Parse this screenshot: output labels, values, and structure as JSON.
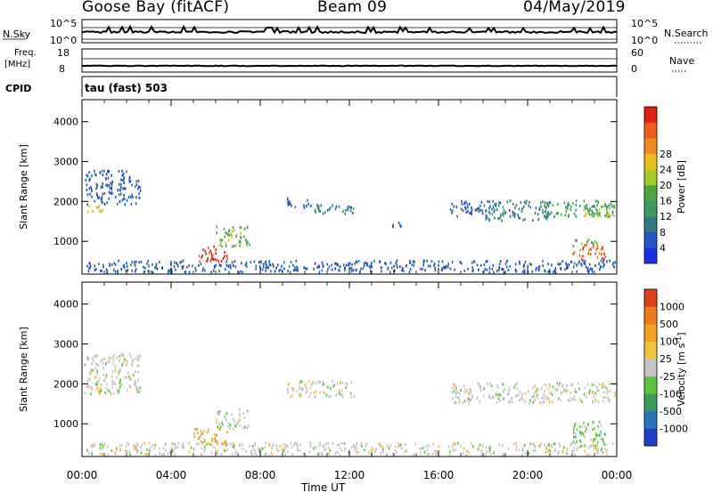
{
  "header": {
    "station": "Goose Bay (fitACF)",
    "beam": "Beam 09",
    "date": "04/May/2019"
  },
  "strips": {
    "nsky_label": "N.Sky",
    "nsearch_label": "N.Search",
    "nsky_ticks": [
      "10^5",
      "10^0"
    ],
    "nsearch_ticks": [
      "10^5",
      "10^0"
    ],
    "freq_label": "Freq.",
    "freq_unit": "[MHz]",
    "freq_ticks": [
      "18",
      "8"
    ],
    "nave_label": "Nave",
    "nave_ticks": [
      "60",
      "0"
    ],
    "cpid_label": "CPID",
    "cpid_value": "tau (fast) 503"
  },
  "chart_data": [
    {
      "type": "heatmap",
      "panel": "power",
      "ylabel": "Slant Range [km]",
      "xlabel": "",
      "xticks": [
        "00:00",
        "04:00",
        "08:00",
        "12:00",
        "16:00",
        "20:00",
        "00:00"
      ],
      "xlim_hours": [
        0,
        24
      ],
      "yticks": [
        1000,
        2000,
        3000,
        4000
      ],
      "ylim": [
        180,
        4550
      ],
      "colorbar": {
        "label": "Power [dB]",
        "ticks": [
          "4",
          "8",
          "12",
          "16",
          "20",
          "24",
          "28"
        ],
        "colors": [
          "#1a2ee8",
          "#2458c8",
          "#2f7a86",
          "#3f9a62",
          "#4ca63f",
          "#a6cc2a",
          "#e8c01d",
          "#ef8a1e",
          "#f05a1c",
          "#e02010"
        ]
      },
      "echo_regions": [
        {
          "t0": 0.1,
          "t1": 0.9,
          "r0": 1750,
          "r1": 1950,
          "level": 6
        },
        {
          "t0": 0.1,
          "t1": 2.6,
          "r0": 1950,
          "r1": 2800,
          "level": 1
        },
        {
          "t0": 5.2,
          "t1": 6.5,
          "r0": 500,
          "r1": 900,
          "level": 9
        },
        {
          "t0": 6.0,
          "t1": 7.5,
          "r0": 900,
          "r1": 1400,
          "level": 4
        },
        {
          "t0": 9.2,
          "t1": 10.2,
          "r0": 1850,
          "r1": 2100,
          "level": 1
        },
        {
          "t0": 10.2,
          "t1": 12.2,
          "r0": 1700,
          "r1": 1950,
          "level": 2
        },
        {
          "t0": 13.8,
          "t1": 14.3,
          "r0": 1400,
          "r1": 1500,
          "level": 1
        },
        {
          "t0": 16.5,
          "t1": 18.0,
          "r0": 1650,
          "r1": 2050,
          "level": 1
        },
        {
          "t0": 18.0,
          "t1": 21.0,
          "r0": 1550,
          "r1": 2050,
          "level": 2
        },
        {
          "t0": 20.5,
          "t1": 23.9,
          "r0": 1650,
          "r1": 2050,
          "level": 3
        },
        {
          "t0": 22.5,
          "t1": 23.9,
          "r0": 1650,
          "r1": 1950,
          "level": 5
        },
        {
          "t0": 22.0,
          "t1": 23.5,
          "r0": 550,
          "r1": 950,
          "level": 8
        },
        {
          "t0": 22.0,
          "t1": 23.2,
          "r0": 950,
          "r1": 1100,
          "level": 4
        },
        {
          "t0": 0.2,
          "t1": 23.9,
          "r0": 250,
          "r1": 550,
          "level": 1
        }
      ]
    },
    {
      "type": "heatmap",
      "panel": "velocity",
      "ylabel": "Slant Range [km]",
      "xlabel": "Time UT",
      "xticks": [
        "00:00",
        "04:00",
        "08:00",
        "12:00",
        "16:00",
        "20:00",
        "00:00"
      ],
      "xlim_hours": [
        0,
        24
      ],
      "yticks": [
        1000,
        2000,
        3000,
        4000
      ],
      "ylim": [
        180,
        4550
      ],
      "colorbar": {
        "label": "Velocity [m s^-1]",
        "label_base": "Velocity [m s",
        "label_exp": "-1",
        "label_close": "]",
        "ticks": [
          "1000",
          "500",
          "100",
          "25",
          "-25",
          "-100",
          "-500",
          "-1000"
        ],
        "colors": [
          "#1d3fcc",
          "#2a74b8",
          "#3a9a5a",
          "#5cc43a",
          "#c4c4c4",
          "#f2c23a",
          "#f2a020",
          "#ee7a1c",
          "#e04018"
        ]
      },
      "echo_regions": [
        {
          "t0": 0.1,
          "t1": 2.6,
          "r0": 1750,
          "r1": 2800,
          "level": 4
        },
        {
          "t0": 5.0,
          "t1": 6.5,
          "r0": 500,
          "r1": 900,
          "level": 6
        },
        {
          "t0": 6.0,
          "t1": 7.5,
          "r0": 900,
          "r1": 1400,
          "level": 4
        },
        {
          "t0": 9.2,
          "t1": 12.2,
          "r0": 1700,
          "r1": 2100,
          "level": 4
        },
        {
          "t0": 16.5,
          "t1": 23.9,
          "r0": 1550,
          "r1": 2050,
          "level": 4
        },
        {
          "t0": 22.0,
          "t1": 23.5,
          "r0": 550,
          "r1": 1100,
          "level": 3
        },
        {
          "t0": 0.2,
          "t1": 23.9,
          "r0": 250,
          "r1": 550,
          "level": 4
        }
      ]
    }
  ]
}
